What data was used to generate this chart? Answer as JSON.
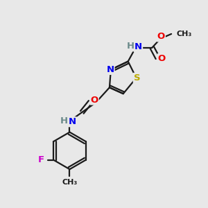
{
  "bg_color": "#e8e8e8",
  "bond_color": "#1a1a1a",
  "bond_width": 1.6,
  "atom_colors": {
    "N": "#0000ee",
    "H": "#6a8a8a",
    "O": "#ee0000",
    "S": "#bbaa00",
    "F": "#cc00cc",
    "C": "#1a1a1a"
  },
  "font_size_atom": 9.5,
  "font_size_small": 8.0
}
